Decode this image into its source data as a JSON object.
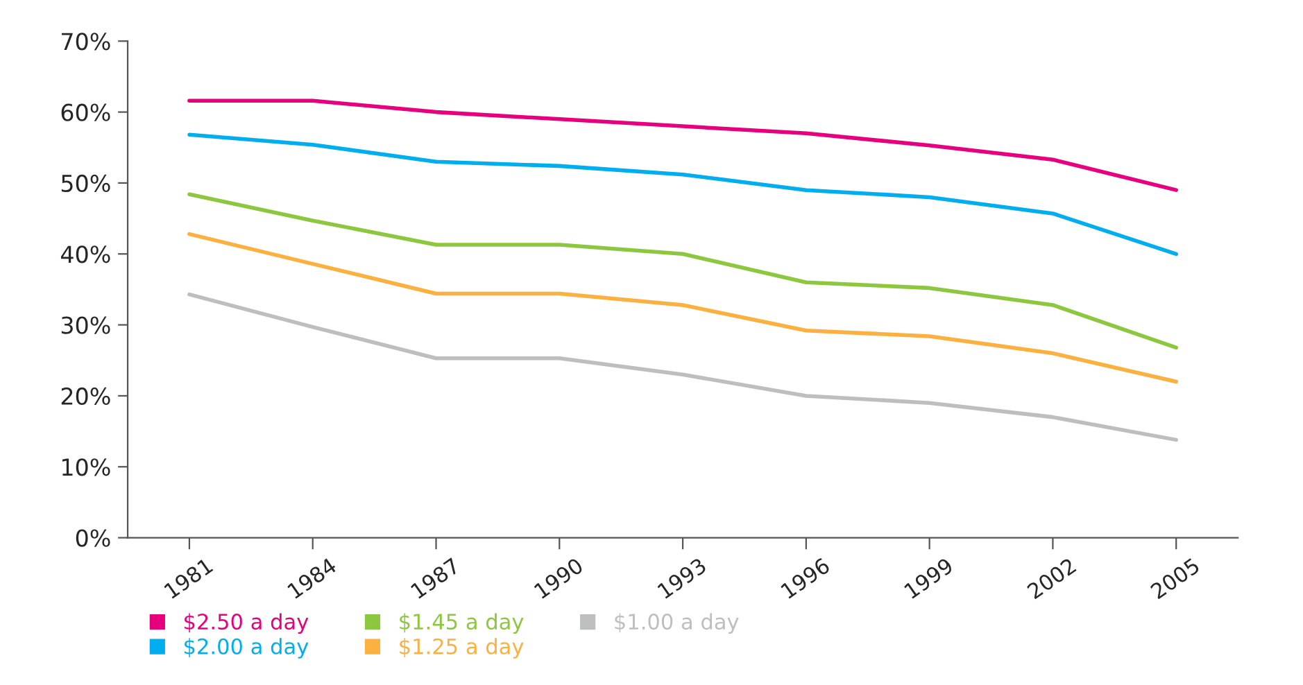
{
  "chart_data": {
    "type": "line",
    "categories": [
      "1981",
      "1984",
      "1987",
      "1990",
      "1993",
      "1996",
      "1999",
      "2002",
      "2005"
    ],
    "ylim": [
      0,
      70
    ],
    "yticks": [
      {
        "value": 0,
        "label": "0%"
      },
      {
        "value": 10,
        "label": "10%"
      },
      {
        "value": 20,
        "label": "20%"
      },
      {
        "value": 30,
        "label": "30%"
      },
      {
        "value": 40,
        "label": "40%"
      },
      {
        "value": 50,
        "label": "50%"
      },
      {
        "value": 60,
        "label": "60%"
      },
      {
        "value": 70,
        "label": "70%"
      }
    ],
    "grid": false,
    "legend": "bottom",
    "marker": "none",
    "line_style": "solid",
    "series": [
      {
        "name": "$2.50 a day",
        "color": "#e6007e",
        "values": [
          61.6,
          61.6,
          60,
          59,
          58,
          57,
          55.3,
          53.3,
          49
        ]
      },
      {
        "name": "$2.00 a day",
        "color": "#00aeef",
        "values": [
          56.8,
          55.4,
          53,
          52.4,
          51.2,
          49,
          48,
          45.7,
          40
        ]
      },
      {
        "name": "$1.45 a day",
        "color": "#8dc63f",
        "values": [
          48.4,
          44.7,
          41.3,
          41.3,
          40,
          36,
          35.2,
          32.8,
          26.8
        ]
      },
      {
        "name": "$1.25 a day",
        "color": "#fbb040",
        "values": [
          42.8,
          38.6,
          34.4,
          34.4,
          32.8,
          29.2,
          28.4,
          26,
          22
        ]
      },
      {
        "name": "$1.00 a day",
        "color": "#bcbec0",
        "values": [
          34.3,
          29.7,
          25.3,
          25.3,
          23,
          20,
          19,
          17,
          13.8
        ]
      }
    ]
  }
}
